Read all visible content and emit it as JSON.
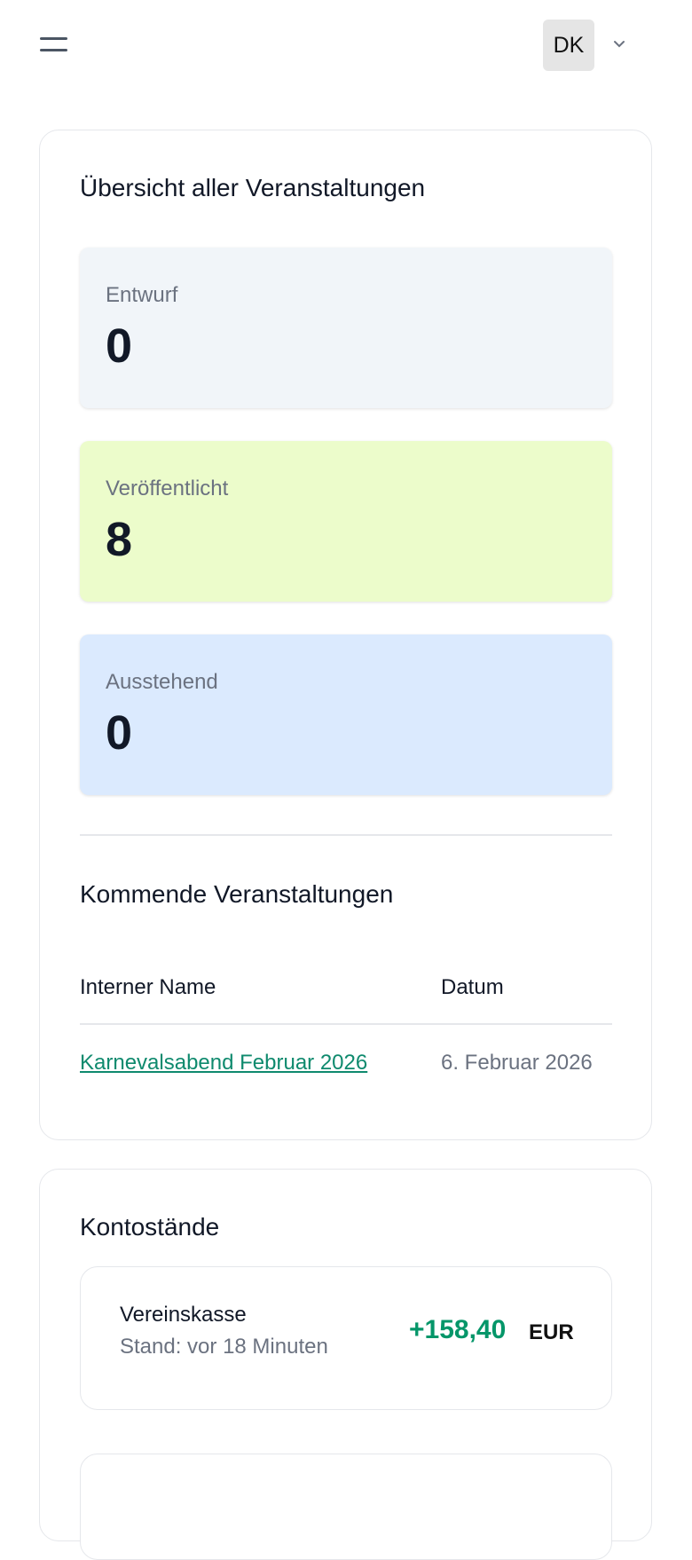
{
  "header": {
    "menu_icon": "hamburger-icon",
    "avatar_initials": "DK",
    "dropdown_icon": "chevron-down-icon"
  },
  "overview": {
    "title": "Übersicht aller Veranstaltungen",
    "stats": [
      {
        "label": "Entwurf",
        "value": "0",
        "color": "#f1f5f9"
      },
      {
        "label": "Veröffentlicht",
        "value": "8",
        "color": "#ecfccb"
      },
      {
        "label": "Ausstehend",
        "value": "0",
        "color": "#dbeafe"
      }
    ],
    "upcoming": {
      "title": "Kommende Veranstaltungen",
      "columns": [
        "Interner Name",
        "Datum"
      ],
      "rows": [
        {
          "name": "Karnevalsabend Februar 2026",
          "date": "6. Februar 2026"
        }
      ]
    }
  },
  "balances": {
    "title": "Kontostände",
    "accounts": [
      {
        "name": "Vereinskasse",
        "status": "Stand: vor 18 Minuten",
        "amount": "+158,40",
        "currency": "EUR",
        "amount_color": "#059669"
      }
    ]
  }
}
